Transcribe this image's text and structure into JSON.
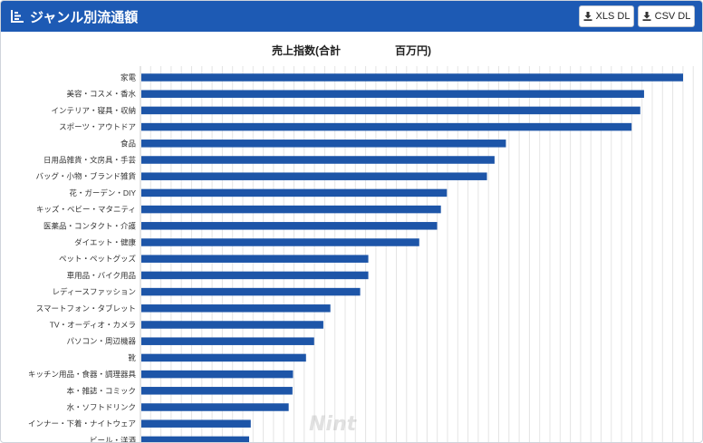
{
  "header": {
    "title": "ジャンル別流通額",
    "xls_label": "XLS DL",
    "csv_label": "CSV DL"
  },
  "colors": {
    "header_bg": "#1d5ab4",
    "bar": "#1d55a8",
    "grid": "#e4e4e4"
  },
  "chart_data": {
    "type": "bar",
    "orientation": "horizontal",
    "title": "売上指数(合計　　　　　百万円)",
    "categories": [
      "家電",
      "美容・コスメ・香水",
      "インテリア・寝具・収納",
      "スポーツ・アウトドア",
      "食品",
      "日用品雑貨・文房具・手芸",
      "バッグ・小物・ブランド雑貨",
      "花・ガーデン・DIY",
      "キッズ・ベビー・マタニティ",
      "医薬品・コンタクト・介護",
      "ダイエット・健康",
      "ペット・ペットグッズ",
      "車用品・バイク用品",
      "レディースファッション",
      "スマートフォン・タブレット",
      "TV・オーディオ・カメラ",
      "パソコン・周辺機器",
      "靴",
      "キッチン用品・食器・調理器具",
      "本・雑誌・コミック",
      "水・ソフトドリンク",
      "インナー・下着・ナイトウェア",
      "ビール・洋酒"
    ],
    "values": [
      100,
      92.8,
      92.1,
      90.5,
      67.3,
      65.2,
      63.8,
      56.4,
      55.3,
      54.6,
      51.3,
      41.9,
      41.9,
      40.4,
      34.9,
      33.6,
      31.9,
      30.4,
      28,
      27.9,
      27.2,
      20.2,
      19.9
    ],
    "xlim": [
      0,
      104
    ],
    "grid": true,
    "legend": "none",
    "watermark": "Nint"
  }
}
